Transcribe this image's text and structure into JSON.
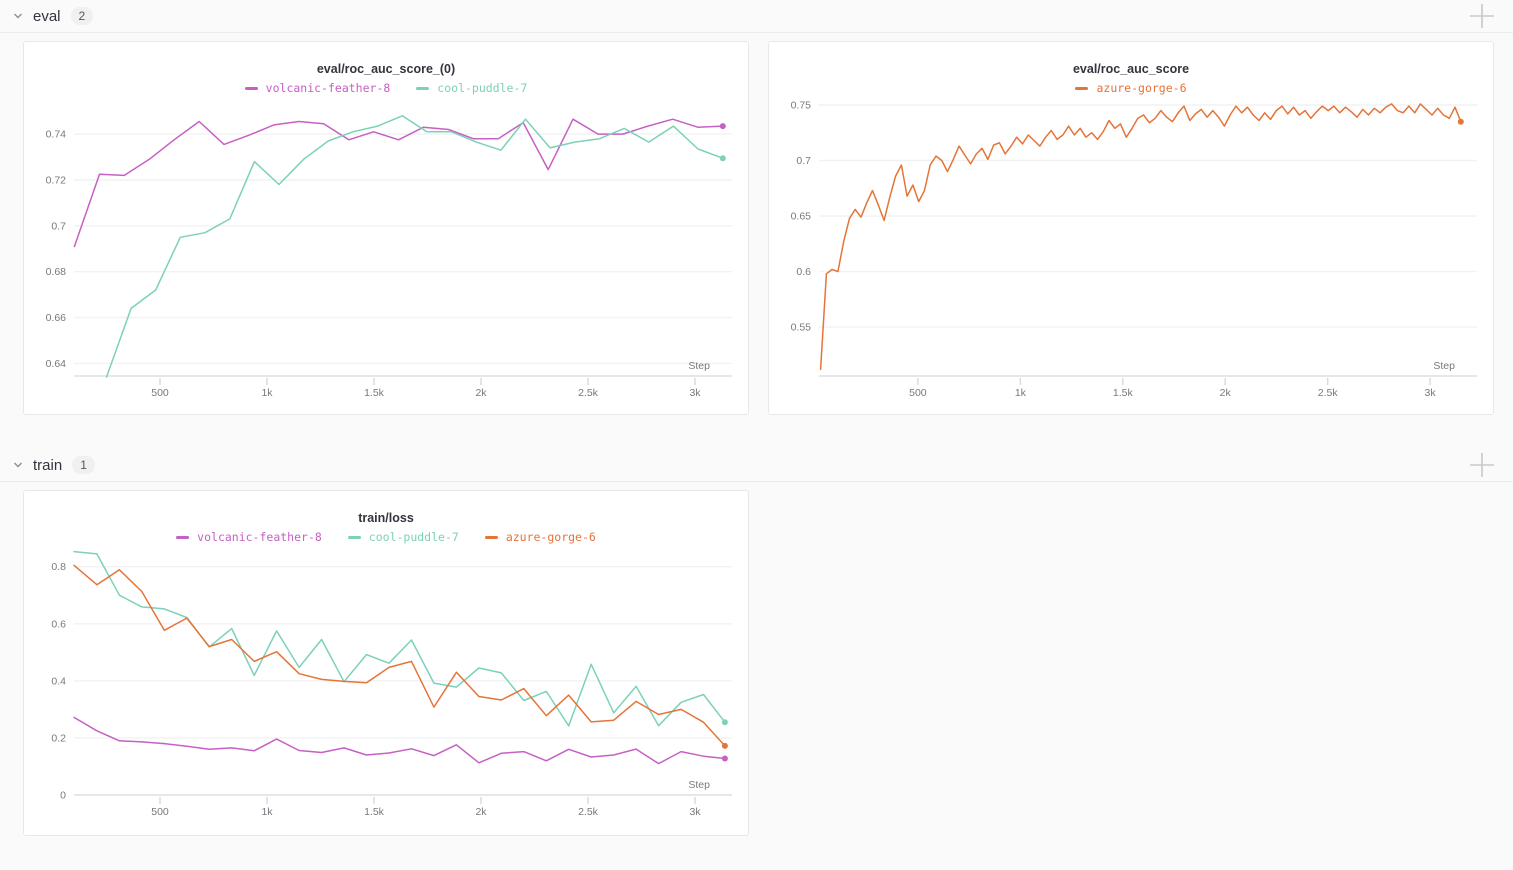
{
  "sections": [
    {
      "title": "eval",
      "count": "2"
    },
    {
      "title": "train",
      "count": "1"
    }
  ],
  "colors": {
    "magenta": "#C560C5",
    "teal": "#7CD1B8",
    "orange": "#E57439",
    "grid": "#f2f2f4",
    "axis": "#e7e7ea",
    "tick_text": "#78787f"
  },
  "chart_data": [
    {
      "type": "line",
      "title": "eval/roc_auc_score_(0)",
      "xlabel": "Step",
      "xlim": [
        98,
        3173
      ],
      "ylim": [
        0.6345,
        0.754
      ],
      "xticks": {
        "values": [
          500,
          1000,
          1500,
          2000,
          2500,
          3000
        ],
        "labels": [
          "500",
          "1k",
          "1.5k",
          "2k",
          "2.5k",
          "3k"
        ]
      },
      "yticks": {
        "values": [
          0.64,
          0.66,
          0.68,
          0.7,
          0.72,
          0.74
        ],
        "labels": [
          "0.64",
          "0.66",
          "0.68",
          "0.7",
          "0.72",
          "0.74"
        ]
      },
      "series": [
        {
          "name": "volcanic-feather-8",
          "color": "#C560C5",
          "x": [
            100,
            217,
            333,
            450,
            566,
            683,
            799,
            916,
            1032,
            1149,
            1265,
            1382,
            1498,
            1615,
            1731,
            1848,
            1964,
            2081,
            2197,
            2314,
            2430,
            2547,
            2663,
            2780,
            2896,
            3013,
            3130
          ],
          "y": [
            0.691,
            0.7225,
            0.722,
            0.729,
            0.7375,
            0.7455,
            0.7355,
            0.7395,
            0.744,
            0.7455,
            0.7445,
            0.7375,
            0.741,
            0.7375,
            0.743,
            0.742,
            0.738,
            0.738,
            0.745,
            0.7245,
            0.7465,
            0.74,
            0.74,
            0.7435,
            0.7465,
            0.743,
            0.7435
          ]
        },
        {
          "name": "cool-puddle-7",
          "color": "#7CD1B8",
          "x": [
            250,
            365,
            480,
            595,
            710,
            826,
            941,
            1056,
            1171,
            1286,
            1402,
            1517,
            1632,
            1747,
            1862,
            1978,
            2093,
            2208,
            2323,
            2438,
            2554,
            2669,
            2784,
            2899,
            3014,
            3130
          ],
          "y": [
            0.634,
            0.664,
            0.672,
            0.695,
            0.697,
            0.703,
            0.728,
            0.718,
            0.729,
            0.737,
            0.741,
            0.7435,
            0.748,
            0.741,
            0.741,
            0.7365,
            0.733,
            0.7465,
            0.734,
            0.7365,
            0.738,
            0.7425,
            0.7365,
            0.7435,
            0.7335,
            0.7295
          ]
        }
      ]
    },
    {
      "type": "line",
      "title": "eval/roc_auc_score",
      "xlabel": "Step",
      "xlim": [
        17,
        3229
      ],
      "ylim": [
        0.506,
        0.7527
      ],
      "xticks": {
        "values": [
          500,
          1000,
          1500,
          2000,
          2500,
          3000
        ],
        "labels": [
          "500",
          "1k",
          "1.5k",
          "2k",
          "2.5k",
          "3k"
        ]
      },
      "yticks": {
        "values": [
          0.55,
          0.6,
          0.65,
          0.7,
          0.75
        ],
        "labels": [
          "0.55",
          "0.6",
          "0.65",
          "0.7",
          "0.75"
        ]
      },
      "series": [
        {
          "name": "azure-gorge-6",
          "color": "#E57439",
          "x_start": 25,
          "x_end": 3150,
          "y": [
            0.512,
            0.598,
            0.602,
            0.6,
            0.627,
            0.648,
            0.656,
            0.649,
            0.662,
            0.673,
            0.66,
            0.646,
            0.667,
            0.686,
            0.696,
            0.668,
            0.678,
            0.663,
            0.673,
            0.696,
            0.704,
            0.7,
            0.69,
            0.701,
            0.713,
            0.705,
            0.697,
            0.706,
            0.711,
            0.701,
            0.714,
            0.716,
            0.706,
            0.713,
            0.721,
            0.715,
            0.723,
            0.718,
            0.713,
            0.721,
            0.727,
            0.719,
            0.723,
            0.731,
            0.723,
            0.729,
            0.721,
            0.725,
            0.719,
            0.726,
            0.736,
            0.729,
            0.733,
            0.721,
            0.729,
            0.738,
            0.741,
            0.734,
            0.738,
            0.745,
            0.739,
            0.735,
            0.743,
            0.749,
            0.736,
            0.742,
            0.746,
            0.739,
            0.745,
            0.739,
            0.731,
            0.741,
            0.749,
            0.743,
            0.748,
            0.741,
            0.736,
            0.743,
            0.737,
            0.745,
            0.749,
            0.742,
            0.748,
            0.741,
            0.745,
            0.738,
            0.744,
            0.749,
            0.745,
            0.749,
            0.743,
            0.748,
            0.744,
            0.739,
            0.746,
            0.741,
            0.747,
            0.743,
            0.748,
            0.751,
            0.745,
            0.743,
            0.749,
            0.743,
            0.751,
            0.746,
            0.741,
            0.747,
            0.741,
            0.738,
            0.748,
            0.735
          ]
        }
      ]
    },
    {
      "type": "line",
      "title": "train/loss",
      "xlabel": "Step",
      "xlim": [
        98,
        3173
      ],
      "ylim": [
        0,
        0.855
      ],
      "xticks": {
        "values": [
          500,
          1000,
          1500,
          2000,
          2500,
          3000
        ],
        "labels": [
          "500",
          "1k",
          "1.5k",
          "2k",
          "2.5k",
          "3k"
        ]
      },
      "yticks": {
        "values": [
          0,
          0.2,
          0.4,
          0.6,
          0.8
        ],
        "labels": [
          "0",
          "0.2",
          "0.4",
          "0.6",
          "0.8"
        ]
      },
      "series": [
        {
          "name": "volcanic-feather-8",
          "color": "#C560C5",
          "x": [
            98,
            205,
            310,
            415,
            520,
            625,
            730,
            835,
            940,
            1045,
            1150,
            1255,
            1360,
            1465,
            1570,
            1675,
            1780,
            1885,
            1990,
            2095,
            2200,
            2305,
            2410,
            2515,
            2620,
            2725,
            2830,
            2935,
            3040,
            3140
          ],
          "y": [
            0.272,
            0.225,
            0.19,
            0.186,
            0.18,
            0.171,
            0.16,
            0.165,
            0.155,
            0.196,
            0.156,
            0.149,
            0.165,
            0.14,
            0.147,
            0.162,
            0.138,
            0.176,
            0.113,
            0.146,
            0.152,
            0.12,
            0.16,
            0.133,
            0.14,
            0.161,
            0.11,
            0.152,
            0.136,
            0.128
          ]
        },
        {
          "name": "cool-puddle-7",
          "color": "#7CD1B8",
          "x": [
            98,
            205,
            310,
            415,
            520,
            625,
            730,
            835,
            940,
            1045,
            1150,
            1255,
            1360,
            1465,
            1570,
            1675,
            1780,
            1885,
            1990,
            2095,
            2200,
            2305,
            2410,
            2515,
            2620,
            2725,
            2830,
            2935,
            3040,
            3140
          ],
          "y": [
            0.853,
            0.845,
            0.7,
            0.659,
            0.652,
            0.622,
            0.519,
            0.583,
            0.419,
            0.575,
            0.447,
            0.545,
            0.397,
            0.492,
            0.462,
            0.543,
            0.392,
            0.378,
            0.445,
            0.428,
            0.331,
            0.363,
            0.242,
            0.458,
            0.288,
            0.381,
            0.243,
            0.325,
            0.352,
            0.255
          ]
        },
        {
          "name": "azure-gorge-6",
          "color": "#E57439",
          "x": [
            98,
            205,
            310,
            415,
            520,
            625,
            730,
            835,
            940,
            1045,
            1150,
            1255,
            1360,
            1465,
            1570,
            1675,
            1780,
            1885,
            1990,
            2095,
            2200,
            2305,
            2410,
            2515,
            2620,
            2725,
            2830,
            2935,
            3040,
            3140
          ],
          "y": [
            0.805,
            0.737,
            0.789,
            0.713,
            0.577,
            0.62,
            0.52,
            0.545,
            0.468,
            0.502,
            0.425,
            0.405,
            0.398,
            0.393,
            0.447,
            0.468,
            0.308,
            0.43,
            0.345,
            0.333,
            0.373,
            0.278,
            0.35,
            0.256,
            0.262,
            0.328,
            0.282,
            0.3,
            0.255,
            0.172
          ]
        }
      ]
    }
  ]
}
